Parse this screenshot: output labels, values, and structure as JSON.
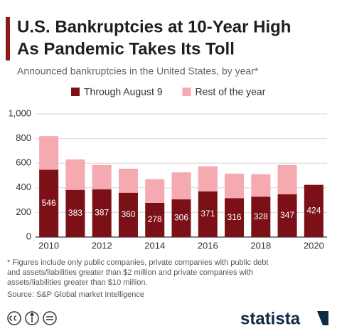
{
  "chart_data": {
    "type": "stacked_bar",
    "title": [
      "U.S. Bankruptcies at 10-Year High",
      "As Pandemic Takes Its Toll"
    ],
    "subtitle": "Announced bankruptcies in the United States, by year*",
    "categories": [
      "2010",
      null,
      "2012",
      null,
      "2014",
      null,
      "2016",
      null,
      "2018",
      null,
      "2020"
    ],
    "series": [
      {
        "name": "Through August 9",
        "color": "#7b1016",
        "values": [
          546,
          383,
          387,
          360,
          278,
          306,
          371,
          316,
          328,
          347,
          424
        ]
      },
      {
        "name": "Rest of the year",
        "color": "#f5a9b1",
        "values": [
          274,
          247,
          198,
          195,
          192,
          219,
          204,
          199,
          182,
          238,
          null
        ]
      }
    ],
    "ylim": [
      0,
      1000
    ],
    "yticks": [
      0,
      200,
      400,
      600,
      800,
      {
        "value": 1000,
        "label": "1,000"
      }
    ],
    "grid": true,
    "footnote": [
      "* Figures include only public companies, private companies with public debt",
      "and assets/liabilities greater than $2 million and private companies with",
      "assets/liabilities greater than $10 million."
    ],
    "source": "Source: S&P Global market Intelligence",
    "brand": "statista"
  }
}
